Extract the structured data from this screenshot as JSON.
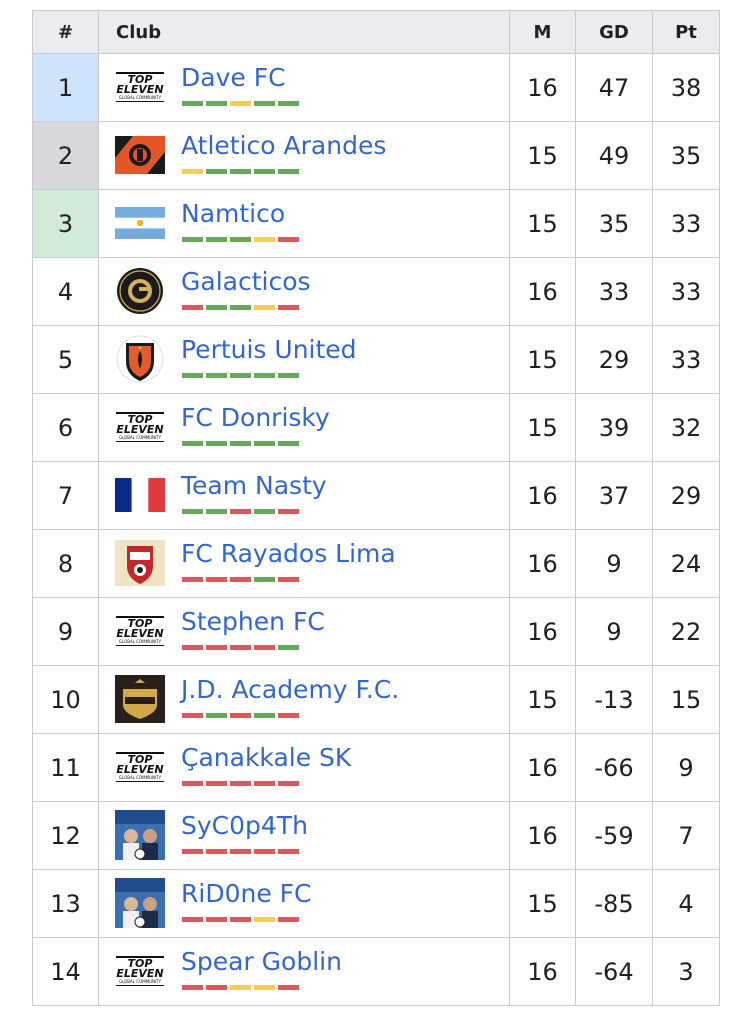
{
  "headers": {
    "rank": "#",
    "club": "Club",
    "m": "M",
    "gd": "GD",
    "pt": "Pt"
  },
  "colors": {
    "link": "#3366cc",
    "win": "#68a85a",
    "draw": "#f2cd5b",
    "loss": "#d9595e",
    "pos1": "#cfe3fd",
    "pos2": "#d6d8db",
    "pos3": "#d4ead8"
  },
  "rows": [
    {
      "rank": "1",
      "club": "Dave FC",
      "m": "16",
      "gd": "47",
      "pt": "38",
      "crest": "top-eleven-logo",
      "form": [
        "W",
        "W",
        "D",
        "W",
        "W"
      ]
    },
    {
      "rank": "2",
      "club": "Atletico Arandes",
      "m": "15",
      "gd": "49",
      "pt": "35",
      "crest": "atletico-arandes-crest",
      "form": [
        "D",
        "W",
        "W",
        "W",
        "W"
      ]
    },
    {
      "rank": "3",
      "club": "Namtico",
      "m": "15",
      "gd": "35",
      "pt": "33",
      "crest": "argentina-flag",
      "form": [
        "W",
        "W",
        "W",
        "D",
        "L"
      ]
    },
    {
      "rank": "4",
      "club": "Galacticos",
      "m": "16",
      "gd": "33",
      "pt": "33",
      "crest": "galacticos-crest",
      "form": [
        "L",
        "W",
        "W",
        "D",
        "L"
      ]
    },
    {
      "rank": "5",
      "club": "Pertuis United",
      "m": "15",
      "gd": "29",
      "pt": "33",
      "crest": "pertuis-united-crest",
      "form": [
        "W",
        "W",
        "W",
        "W",
        "W"
      ]
    },
    {
      "rank": "6",
      "club": "FC Donrisky",
      "m": "15",
      "gd": "39",
      "pt": "32",
      "crest": "top-eleven-logo",
      "form": [
        "W",
        "W",
        "W",
        "W",
        "W"
      ]
    },
    {
      "rank": "7",
      "club": "Team Nasty",
      "m": "16",
      "gd": "37",
      "pt": "29",
      "crest": "france-flag",
      "form": [
        "W",
        "W",
        "L",
        "W",
        "L"
      ]
    },
    {
      "rank": "8",
      "club": "FC Rayados Lima",
      "m": "16",
      "gd": "9",
      "pt": "24",
      "crest": "rayados-lima-crest",
      "form": [
        "L",
        "L",
        "L",
        "W",
        "L"
      ]
    },
    {
      "rank": "9",
      "club": "Stephen FC",
      "m": "16",
      "gd": "9",
      "pt": "22",
      "crest": "top-eleven-logo",
      "form": [
        "L",
        "L",
        "L",
        "L",
        "W"
      ]
    },
    {
      "rank": "10",
      "club": "J.D. Academy F.C.",
      "m": "15",
      "gd": "-13",
      "pt": "15",
      "crest": "jd-academy-crest",
      "form": [
        "L",
        "W",
        "L",
        "W",
        "L"
      ]
    },
    {
      "rank": "11",
      "club": "Çanakkale SK",
      "m": "16",
      "gd": "-66",
      "pt": "9",
      "crest": "top-eleven-logo",
      "form": [
        "L",
        "L",
        "L",
        "L",
        "L"
      ]
    },
    {
      "rank": "12",
      "club": "SyC0p4Th",
      "m": "16",
      "gd": "-59",
      "pt": "7",
      "crest": "fc-2023-cover-image",
      "form": [
        "L",
        "L",
        "L",
        "L",
        "L"
      ]
    },
    {
      "rank": "13",
      "club": "RiD0ne FC",
      "m": "15",
      "gd": "-85",
      "pt": "4",
      "crest": "fc-2023-cover-image",
      "form": [
        "L",
        "L",
        "L",
        "D",
        "L"
      ]
    },
    {
      "rank": "14",
      "club": "Spear Goblin",
      "m": "16",
      "gd": "-64",
      "pt": "3",
      "crest": "top-eleven-logo",
      "form": [
        "L",
        "L",
        "D",
        "D",
        "L"
      ]
    }
  ],
  "logo_text": {
    "top": "TOP",
    "eleven": "ELEVEN",
    "sub": "GLOBAL COMMUNITY",
    "year": "2023",
    "fc": "FC",
    "rayados": "RAYADOS",
    "lima": "LIMA",
    "academy": "ACADEMY",
    "galacticos": "THE GALACTICOS"
  }
}
